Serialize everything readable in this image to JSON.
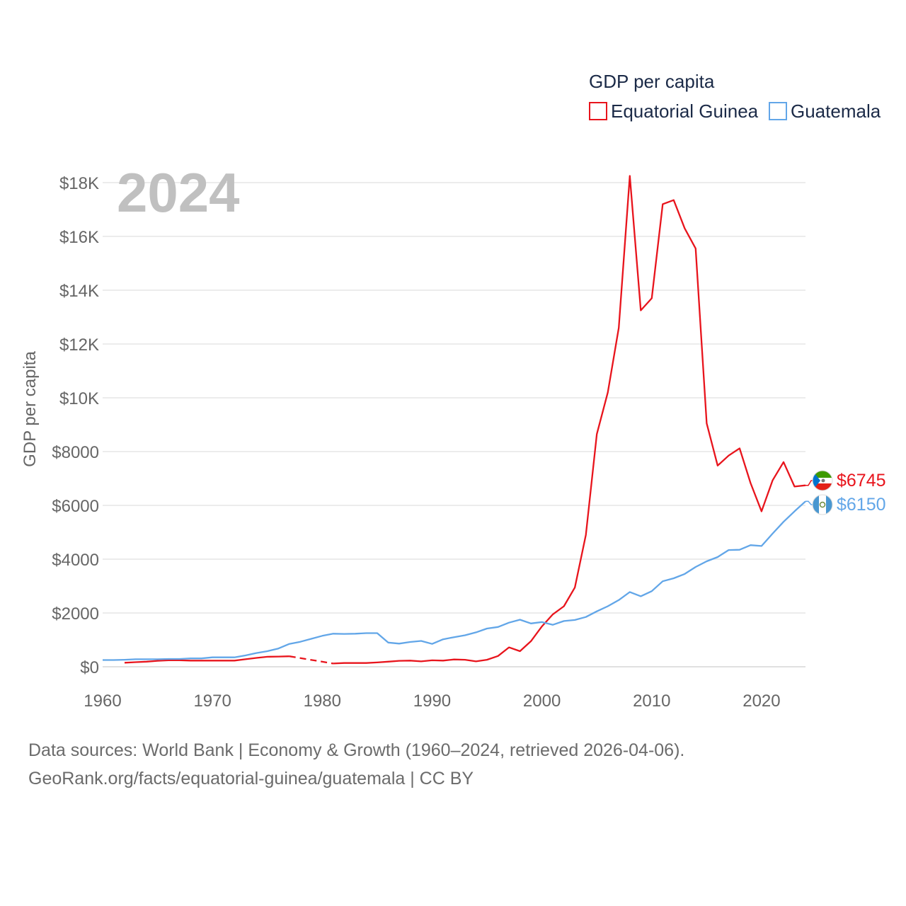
{
  "chart_data": {
    "type": "line",
    "title": "GDP per capita",
    "ylabel": "GDP per capita",
    "xlabel": "",
    "current_year": "2024",
    "xlim": [
      1960,
      2024
    ],
    "ylim": [
      0,
      18000
    ],
    "x_ticks": [
      1960,
      1970,
      1980,
      1990,
      2000,
      2010,
      2020
    ],
    "y_ticks": [
      {
        "value": 0,
        "label": "$0"
      },
      {
        "value": 2000,
        "label": "$2000"
      },
      {
        "value": 4000,
        "label": "$4000"
      },
      {
        "value": 6000,
        "label": "$6000"
      },
      {
        "value": 8000,
        "label": "$8000"
      },
      {
        "value": 10000,
        "label": "$10K"
      },
      {
        "value": 12000,
        "label": "$12K"
      },
      {
        "value": 14000,
        "label": "$14K"
      },
      {
        "value": 16000,
        "label": "$16K"
      },
      {
        "value": 18000,
        "label": "$18K"
      }
    ],
    "legend_position": "top-right",
    "series": [
      {
        "name": "Equatorial Guinea",
        "color": "#e8141c",
        "end_label": "$6745",
        "flag_icon": "equatorial-guinea-flag-icon",
        "gap": [
          1977,
          1981
        ],
        "points": [
          [
            1962,
            150
          ],
          [
            1963,
            170
          ],
          [
            1964,
            190
          ],
          [
            1965,
            220
          ],
          [
            1966,
            240
          ],
          [
            1967,
            240
          ],
          [
            1968,
            230
          ],
          [
            1969,
            230
          ],
          [
            1970,
            230
          ],
          [
            1971,
            230
          ],
          [
            1972,
            230
          ],
          [
            1973,
            280
          ],
          [
            1974,
            330
          ],
          [
            1975,
            370
          ],
          [
            1976,
            380
          ],
          [
            1977,
            390
          ],
          [
            1981,
            120
          ],
          [
            1982,
            140
          ],
          [
            1983,
            140
          ],
          [
            1984,
            140
          ],
          [
            1985,
            160
          ],
          [
            1986,
            190
          ],
          [
            1987,
            220
          ],
          [
            1988,
            230
          ],
          [
            1989,
            200
          ],
          [
            1990,
            240
          ],
          [
            1991,
            230
          ],
          [
            1992,
            270
          ],
          [
            1993,
            260
          ],
          [
            1994,
            200
          ],
          [
            1995,
            260
          ],
          [
            1996,
            400
          ],
          [
            1997,
            720
          ],
          [
            1998,
            580
          ],
          [
            1999,
            950
          ],
          [
            2000,
            1500
          ],
          [
            2001,
            1950
          ],
          [
            2002,
            2250
          ],
          [
            2003,
            2950
          ],
          [
            2004,
            4900
          ],
          [
            2005,
            8650
          ],
          [
            2006,
            10200
          ],
          [
            2007,
            12600
          ],
          [
            2008,
            18250
          ],
          [
            2009,
            13250
          ],
          [
            2010,
            13700
          ],
          [
            2011,
            17200
          ],
          [
            2012,
            17350
          ],
          [
            2013,
            16300
          ],
          [
            2014,
            15550
          ],
          [
            2015,
            9050
          ],
          [
            2016,
            7480
          ],
          [
            2017,
            7850
          ],
          [
            2018,
            8120
          ],
          [
            2019,
            6830
          ],
          [
            2020,
            5780
          ],
          [
            2021,
            6930
          ],
          [
            2022,
            7610
          ],
          [
            2023,
            6700
          ],
          [
            2024,
            6745
          ]
        ]
      },
      {
        "name": "Guatemala",
        "color": "#62a6e8",
        "end_label": "$6150",
        "flag_icon": "guatemala-flag-icon",
        "points": [
          [
            1960,
            250
          ],
          [
            1961,
            250
          ],
          [
            1962,
            260
          ],
          [
            1963,
            280
          ],
          [
            1964,
            280
          ],
          [
            1965,
            280
          ],
          [
            1966,
            290
          ],
          [
            1967,
            290
          ],
          [
            1968,
            310
          ],
          [
            1969,
            310
          ],
          [
            1970,
            350
          ],
          [
            1971,
            350
          ],
          [
            1972,
            350
          ],
          [
            1973,
            420
          ],
          [
            1974,
            510
          ],
          [
            1975,
            580
          ],
          [
            1976,
            680
          ],
          [
            1977,
            850
          ],
          [
            1978,
            930
          ],
          [
            1979,
            1040
          ],
          [
            1980,
            1150
          ],
          [
            1981,
            1230
          ],
          [
            1982,
            1220
          ],
          [
            1983,
            1230
          ],
          [
            1984,
            1250
          ],
          [
            1985,
            1250
          ],
          [
            1986,
            900
          ],
          [
            1987,
            860
          ],
          [
            1988,
            920
          ],
          [
            1989,
            960
          ],
          [
            1990,
            850
          ],
          [
            1991,
            1020
          ],
          [
            1992,
            1100
          ],
          [
            1993,
            1170
          ],
          [
            1994,
            1280
          ],
          [
            1995,
            1420
          ],
          [
            1996,
            1480
          ],
          [
            1997,
            1640
          ],
          [
            1998,
            1750
          ],
          [
            1999,
            1610
          ],
          [
            2000,
            1660
          ],
          [
            2001,
            1560
          ],
          [
            2002,
            1700
          ],
          [
            2003,
            1740
          ],
          [
            2004,
            1850
          ],
          [
            2005,
            2060
          ],
          [
            2006,
            2250
          ],
          [
            2007,
            2480
          ],
          [
            2008,
            2780
          ],
          [
            2009,
            2620
          ],
          [
            2010,
            2810
          ],
          [
            2011,
            3180
          ],
          [
            2012,
            3290
          ],
          [
            2013,
            3450
          ],
          [
            2014,
            3710
          ],
          [
            2015,
            3920
          ],
          [
            2016,
            4080
          ],
          [
            2017,
            4340
          ],
          [
            2018,
            4350
          ],
          [
            2019,
            4520
          ],
          [
            2020,
            4490
          ],
          [
            2021,
            4950
          ],
          [
            2022,
            5390
          ],
          [
            2023,
            5780
          ],
          [
            2024,
            6150
          ]
        ]
      }
    ]
  },
  "footer": {
    "line1": "Data sources: World Bank | Economy & Growth (1960–2024, retrieved 2026-04-06).",
    "line2": "GeoRank.org/facts/equatorial-guinea/guatemala | CC BY"
  }
}
